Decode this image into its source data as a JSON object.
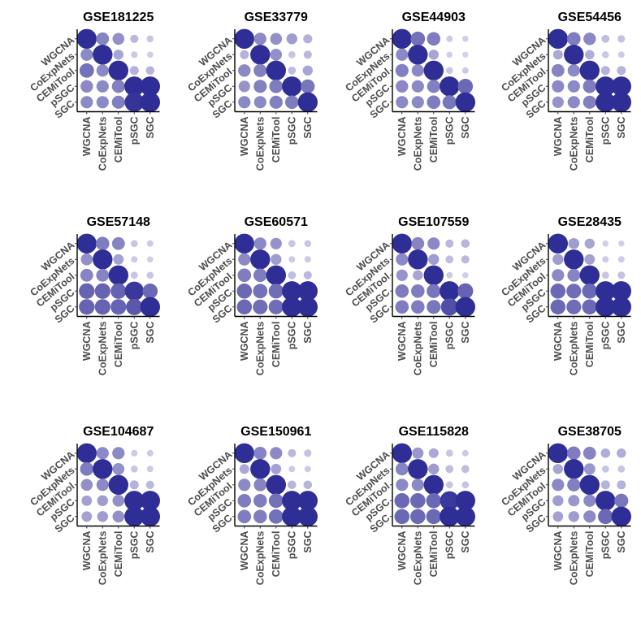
{
  "figure": {
    "panels_per_row": 4,
    "style": "dot matrix, dot size and color intensity both encode similarity"
  },
  "chart_data": [
    {
      "type": "heatmap",
      "title": "GSE181225",
      "x_categories": [
        "WGCNA",
        "CoExpNets",
        "CEMiTool",
        "pSGC",
        "SGC"
      ],
      "y_categories": [
        "WGCNA",
        "CoExpNets",
        "CEMiTool",
        "pSGC",
        "SGC"
      ],
      "values": [
        [
          1.0,
          0.58,
          0.52,
          0.28,
          0.18
        ],
        [
          0.55,
          1.0,
          0.4,
          0.16,
          0.13
        ],
        [
          0.68,
          0.55,
          1.0,
          0.32,
          0.3
        ],
        [
          0.56,
          0.55,
          0.6,
          1.0,
          1.0
        ],
        [
          0.55,
          0.55,
          0.6,
          0.97,
          1.0
        ]
      ],
      "xlabel": "",
      "ylabel": ""
    },
    {
      "type": "heatmap",
      "title": "GSE33779",
      "x_categories": [
        "WGCNA",
        "CoExpNets",
        "CEMiTool",
        "pSGC",
        "SGC"
      ],
      "y_categories": [
        "WGCNA",
        "CoExpNets",
        "CEMiTool",
        "pSGC",
        "SGC"
      ],
      "values": [
        [
          1.0,
          0.55,
          0.52,
          0.45,
          0.33
        ],
        [
          0.32,
          1.0,
          0.52,
          0.2,
          0.28
        ],
        [
          0.56,
          0.6,
          1.0,
          0.25,
          0.4
        ],
        [
          0.5,
          0.6,
          0.62,
          1.0,
          0.65
        ],
        [
          0.55,
          0.55,
          0.6,
          0.62,
          1.0
        ]
      ],
      "xlabel": "",
      "ylabel": ""
    },
    {
      "type": "heatmap",
      "title": "GSE44903",
      "x_categories": [
        "WGCNA",
        "CoExpNets",
        "CEMiTool",
        "pSGC",
        "SGC"
      ],
      "y_categories": [
        "WGCNA",
        "CoExpNets",
        "CEMiTool",
        "pSGC",
        "SGC"
      ],
      "values": [
        [
          1.0,
          0.68,
          0.62,
          0.15,
          0.12
        ],
        [
          0.55,
          1.0,
          0.4,
          0.12,
          0.1
        ],
        [
          0.6,
          0.55,
          1.0,
          0.18,
          0.15
        ],
        [
          0.56,
          0.55,
          0.6,
          1.0,
          0.72
        ],
        [
          0.55,
          0.55,
          0.62,
          0.65,
          1.0
        ]
      ],
      "xlabel": "",
      "ylabel": ""
    },
    {
      "type": "heatmap",
      "title": "GSE54456",
      "x_categories": [
        "WGCNA",
        "CoExpNets",
        "CEMiTool",
        "pSGC",
        "SGC"
      ],
      "y_categories": [
        "WGCNA",
        "CoExpNets",
        "CEMiTool",
        "pSGC",
        "SGC"
      ],
      "values": [
        [
          1.0,
          0.62,
          0.56,
          0.25,
          0.22
        ],
        [
          0.38,
          1.0,
          0.35,
          0.18,
          0.15
        ],
        [
          0.58,
          0.55,
          1.0,
          0.32,
          0.32
        ],
        [
          0.55,
          0.55,
          0.62,
          1.0,
          1.0
        ],
        [
          0.5,
          0.55,
          0.6,
          1.0,
          1.0
        ]
      ],
      "xlabel": "",
      "ylabel": ""
    },
    {
      "type": "heatmap",
      "title": "GSE57148",
      "x_categories": [
        "WGCNA",
        "CoExpNets",
        "CEMiTool",
        "pSGC",
        "SGC"
      ],
      "y_categories": [
        "WGCNA",
        "CoExpNets",
        "CEMiTool",
        "pSGC",
        "SGC"
      ],
      "values": [
        [
          1.0,
          0.62,
          0.58,
          0.18,
          0.15
        ],
        [
          0.52,
          1.0,
          0.42,
          0.15,
          0.12
        ],
        [
          0.58,
          0.58,
          1.0,
          0.2,
          0.18
        ],
        [
          0.75,
          0.75,
          0.75,
          0.95,
          0.72
        ],
        [
          0.75,
          0.75,
          0.75,
          0.8,
          1.0
        ]
      ],
      "xlabel": "",
      "ylabel": ""
    },
    {
      "type": "heatmap",
      "title": "GSE60571",
      "x_categories": [
        "WGCNA",
        "CoExpNets",
        "CEMiTool",
        "pSGC",
        "SGC"
      ],
      "y_categories": [
        "WGCNA",
        "CoExpNets",
        "CEMiTool",
        "pSGC",
        "SGC"
      ],
      "values": [
        [
          1.0,
          0.55,
          0.5,
          0.2,
          0.18
        ],
        [
          0.55,
          1.0,
          0.45,
          0.15,
          0.15
        ],
        [
          0.62,
          0.62,
          1.0,
          0.25,
          0.28
        ],
        [
          0.72,
          0.68,
          0.7,
          1.0,
          1.0
        ],
        [
          0.72,
          0.7,
          0.7,
          1.0,
          1.0
        ]
      ],
      "xlabel": "",
      "ylabel": ""
    },
    {
      "type": "heatmap",
      "title": "GSE107559",
      "x_categories": [
        "WGCNA",
        "CoExpNets",
        "CEMiTool",
        "pSGC",
        "SGC"
      ],
      "y_categories": [
        "WGCNA",
        "CoExpNets",
        "CEMiTool",
        "pSGC",
        "SGC"
      ],
      "values": [
        [
          1.0,
          0.58,
          0.55,
          0.28,
          0.3
        ],
        [
          0.55,
          1.0,
          0.45,
          0.25,
          0.28
        ],
        [
          0.5,
          0.4,
          1.0,
          0.15,
          0.12
        ],
        [
          0.62,
          0.62,
          0.65,
          1.0,
          0.75
        ],
        [
          0.62,
          0.62,
          0.65,
          0.85,
          1.0
        ]
      ],
      "xlabel": "",
      "ylabel": ""
    },
    {
      "type": "heatmap",
      "title": "GSE28435",
      "x_categories": [
        "WGCNA",
        "CoExpNets",
        "CEMiTool",
        "pSGC",
        "SGC"
      ],
      "y_categories": [
        "WGCNA",
        "CoExpNets",
        "CEMiTool",
        "pSGC",
        "SGC"
      ],
      "values": [
        [
          1.0,
          0.45,
          0.4,
          0.12,
          0.12
        ],
        [
          0.45,
          1.0,
          0.42,
          0.15,
          0.15
        ],
        [
          0.55,
          0.58,
          1.0,
          0.2,
          0.22
        ],
        [
          0.72,
          0.7,
          0.72,
          1.0,
          1.0
        ],
        [
          0.72,
          0.7,
          0.72,
          1.0,
          1.0
        ]
      ],
      "xlabel": "",
      "ylabel": ""
    },
    {
      "type": "heatmap",
      "title": "GSE104687",
      "x_categories": [
        "WGCNA",
        "CoExpNets",
        "CEMiTool",
        "pSGC",
        "SGC"
      ],
      "y_categories": [
        "WGCNA",
        "CoExpNets",
        "CEMiTool",
        "pSGC",
        "SGC"
      ],
      "values": [
        [
          1.0,
          0.55,
          0.55,
          0.15,
          0.15
        ],
        [
          0.62,
          1.0,
          0.52,
          0.18,
          0.15
        ],
        [
          0.52,
          0.55,
          1.0,
          0.32,
          0.28
        ],
        [
          0.42,
          0.45,
          0.52,
          1.0,
          1.0
        ],
        [
          0.42,
          0.45,
          0.52,
          1.0,
          1.0
        ]
      ],
      "xlabel": "",
      "ylabel": ""
    },
    {
      "type": "heatmap",
      "title": "GSE150961",
      "x_categories": [
        "WGCNA",
        "CoExpNets",
        "CEMiTool",
        "pSGC",
        "SGC"
      ],
      "y_categories": [
        "WGCNA",
        "CoExpNets",
        "CEMiTool",
        "pSGC",
        "SGC"
      ],
      "values": [
        [
          1.0,
          0.58,
          0.55,
          0.28,
          0.22
        ],
        [
          0.38,
          1.0,
          0.42,
          0.15,
          0.15
        ],
        [
          0.55,
          0.58,
          1.0,
          0.3,
          0.3
        ],
        [
          0.62,
          0.62,
          0.68,
          1.0,
          1.0
        ],
        [
          0.62,
          0.62,
          0.68,
          1.0,
          1.0
        ]
      ],
      "xlabel": "",
      "ylabel": ""
    },
    {
      "type": "heatmap",
      "title": "GSE115828",
      "x_categories": [
        "WGCNA",
        "CoExpNets",
        "CEMiTool",
        "pSGC",
        "SGC"
      ],
      "y_categories": [
        "WGCNA",
        "CoExpNets",
        "CEMiTool",
        "pSGC",
        "SGC"
      ],
      "values": [
        [
          1.0,
          0.48,
          0.38,
          0.2,
          0.15
        ],
        [
          0.58,
          1.0,
          0.45,
          0.25,
          0.25
        ],
        [
          0.55,
          0.55,
          1.0,
          0.2,
          0.2
        ],
        [
          0.72,
          0.72,
          0.72,
          0.95,
          1.0
        ],
        [
          0.72,
          0.72,
          0.72,
          1.0,
          1.0
        ]
      ],
      "xlabel": "",
      "ylabel": ""
    },
    {
      "type": "heatmap",
      "title": "GSE38705",
      "x_categories": [
        "WGCNA",
        "CoExpNets",
        "CEMiTool",
        "pSGC",
        "SGC"
      ],
      "y_categories": [
        "WGCNA",
        "CoExpNets",
        "CEMiTool",
        "pSGC",
        "SGC"
      ],
      "values": [
        [
          1.0,
          0.62,
          0.58,
          0.35,
          0.35
        ],
        [
          0.4,
          1.0,
          0.48,
          0.2,
          0.2
        ],
        [
          0.55,
          0.6,
          1.0,
          0.32,
          0.32
        ],
        [
          0.45,
          0.48,
          0.55,
          1.0,
          0.65
        ],
        [
          0.42,
          0.45,
          0.55,
          0.72,
          1.0
        ]
      ],
      "xlabel": "",
      "ylabel": ""
    }
  ],
  "colors": {
    "low": "#dcd9ef",
    "high": "#2f2d96",
    "axis": "#000000",
    "tick_text": "#4d4d4d",
    "title_text": "#000000"
  }
}
